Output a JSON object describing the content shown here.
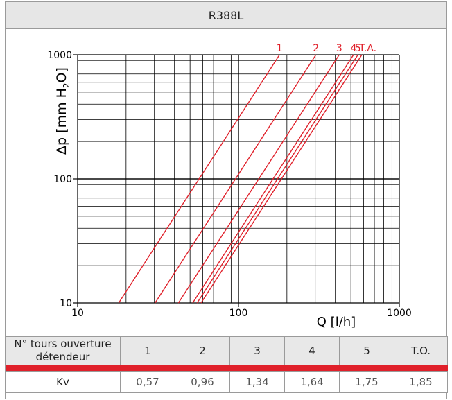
{
  "title": "R388L",
  "chart_data": {
    "type": "line",
    "xscale": "log",
    "yscale": "log",
    "xlim": [
      10,
      1000
    ],
    "ylim": [
      10,
      1000
    ],
    "xlabel": "Q [l/h]",
    "ylabel": "Δp [mm H2O]",
    "x_ticks": [
      "10",
      "100",
      "1000"
    ],
    "y_ticks": [
      "10",
      "100",
      "1000"
    ],
    "grid": true,
    "line_color": "#e0202a",
    "series": [
      {
        "name": "1",
        "x": [
          18,
          180
        ],
        "y": [
          10,
          1000
        ]
      },
      {
        "name": "2",
        "x": [
          30.3,
          303
        ],
        "y": [
          10,
          1000
        ]
      },
      {
        "name": "3",
        "x": [
          42.3,
          423
        ],
        "y": [
          10,
          1000
        ]
      },
      {
        "name": "4",
        "x": [
          51.9,
          519
        ],
        "y": [
          10,
          1000
        ]
      },
      {
        "name": "5",
        "x": [
          55.3,
          553
        ],
        "y": [
          10,
          1000
        ]
      },
      {
        "name": "T.A.",
        "x": [
          58.5,
          585
        ],
        "y": [
          10,
          1000
        ]
      }
    ]
  },
  "table": {
    "row1_header": "N° tours ouverture détendeur",
    "row1_values": [
      "1",
      "2",
      "3",
      "4",
      "5",
      "T.O."
    ],
    "row2_header": "Kv",
    "row2_values": [
      "0,57",
      "0,96",
      "1,34",
      "1,64",
      "1,75",
      "1,85"
    ]
  }
}
